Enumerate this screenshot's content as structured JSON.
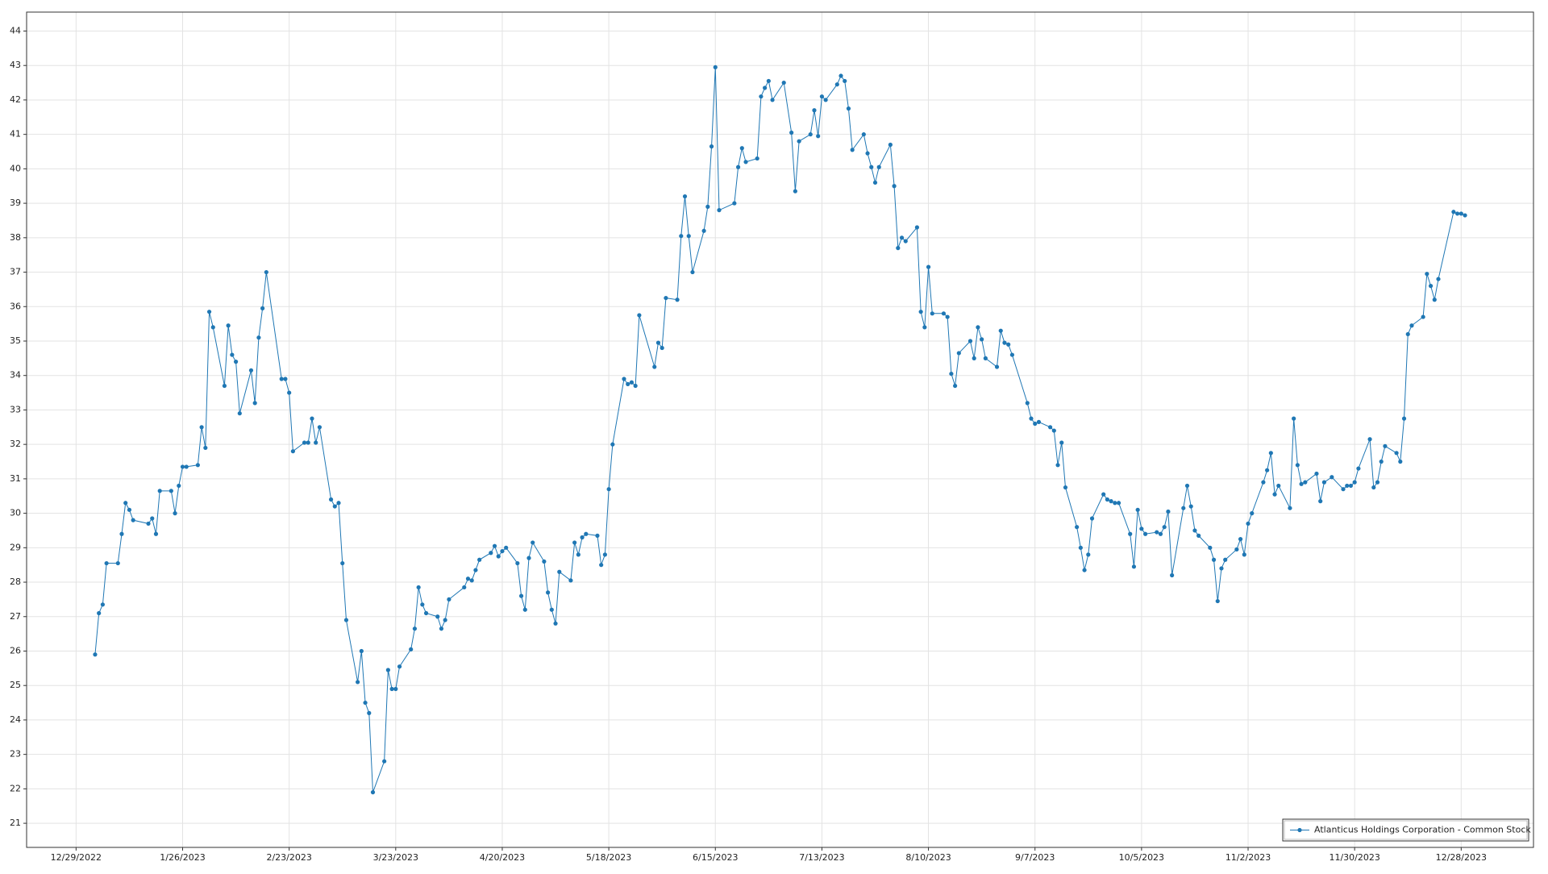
{
  "chart_data": {
    "type": "line",
    "grid": true,
    "legend": "lower right",
    "xlim": [
      "12/16/2022",
      "1/16/2024"
    ],
    "xticks": [
      "12/29/2022",
      "1/26/2023",
      "2/23/2023",
      "3/23/2023",
      "4/20/2023",
      "5/18/2023",
      "6/15/2023",
      "7/13/2023",
      "8/10/2023",
      "9/7/2023",
      "10/5/2023",
      "11/2/2023",
      "11/30/2023",
      "12/28/2023"
    ],
    "ylim": [
      20.3,
      44.55
    ],
    "yticks": [
      21,
      22,
      23,
      24,
      25,
      26,
      27,
      28,
      29,
      30,
      31,
      32,
      33,
      34,
      35,
      36,
      37,
      38,
      39,
      40,
      41,
      42,
      43,
      44
    ],
    "x": [
      "1/3/2023",
      "1/4/2023",
      "1/5/2023",
      "1/6/2023",
      "1/9/2023",
      "1/10/2023",
      "1/11/2023",
      "1/12/2023",
      "1/13/2023",
      "1/17/2023",
      "1/18/2023",
      "1/19/2023",
      "1/20/2023",
      "1/23/2023",
      "1/24/2023",
      "1/25/2023",
      "1/26/2023",
      "1/27/2023",
      "1/30/2023",
      "1/31/2023",
      "2/1/2023",
      "2/2/2023",
      "2/3/2023",
      "2/6/2023",
      "2/7/2023",
      "2/8/2023",
      "2/9/2023",
      "2/10/2023",
      "2/13/2023",
      "2/14/2023",
      "2/15/2023",
      "2/16/2023",
      "2/17/2023",
      "2/21/2023",
      "2/22/2023",
      "2/23/2023",
      "2/24/2023",
      "2/27/2023",
      "2/28/2023",
      "3/1/2023",
      "3/2/2023",
      "3/3/2023",
      "3/6/2023",
      "3/7/2023",
      "3/8/2023",
      "3/9/2023",
      "3/10/2023",
      "3/13/2023",
      "3/14/2023",
      "3/15/2023",
      "3/16/2023",
      "3/17/2023",
      "3/20/2023",
      "3/21/2023",
      "3/22/2023",
      "3/23/2023",
      "3/24/2023",
      "3/27/2023",
      "3/28/2023",
      "3/29/2023",
      "3/30/2023",
      "3/31/2023",
      "4/3/2023",
      "4/4/2023",
      "4/5/2023",
      "4/6/2023",
      "4/10/2023",
      "4/11/2023",
      "4/12/2023",
      "4/13/2023",
      "4/14/2023",
      "4/17/2023",
      "4/18/2023",
      "4/19/2023",
      "4/20/2023",
      "4/21/2023",
      "4/24/2023",
      "4/25/2023",
      "4/26/2023",
      "4/27/2023",
      "4/28/2023",
      "5/1/2023",
      "5/2/2023",
      "5/3/2023",
      "5/4/2023",
      "5/5/2023",
      "5/8/2023",
      "5/9/2023",
      "5/10/2023",
      "5/11/2023",
      "5/12/2023",
      "5/15/2023",
      "5/16/2023",
      "5/17/2023",
      "5/18/2023",
      "5/19/2023",
      "5/22/2023",
      "5/23/2023",
      "5/24/2023",
      "5/25/2023",
      "5/26/2023",
      "5/30/2023",
      "5/31/2023",
      "6/1/2023",
      "6/2/2023",
      "6/5/2023",
      "6/6/2023",
      "6/7/2023",
      "6/8/2023",
      "6/9/2023",
      "6/12/2023",
      "6/13/2023",
      "6/14/2023",
      "6/15/2023",
      "6/16/2023",
      "6/20/2023",
      "6/21/2023",
      "6/22/2023",
      "6/23/2023",
      "6/26/2023",
      "6/27/2023",
      "6/28/2023",
      "6/29/2023",
      "6/30/2023",
      "7/3/2023",
      "7/5/2023",
      "7/6/2023",
      "7/7/2023",
      "7/10/2023",
      "7/11/2023",
      "7/12/2023",
      "7/13/2023",
      "7/14/2023",
      "7/17/2023",
      "7/18/2023",
      "7/19/2023",
      "7/20/2023",
      "7/21/2023",
      "7/24/2023",
      "7/25/2023",
      "7/26/2023",
      "7/27/2023",
      "7/28/2023",
      "7/31/2023",
      "8/1/2023",
      "8/2/2023",
      "8/3/2023",
      "8/4/2023",
      "8/7/2023",
      "8/8/2023",
      "8/9/2023",
      "8/10/2023",
      "8/11/2023",
      "8/14/2023",
      "8/15/2023",
      "8/16/2023",
      "8/17/2023",
      "8/18/2023",
      "8/21/2023",
      "8/22/2023",
      "8/23/2023",
      "8/24/2023",
      "8/25/2023",
      "8/28/2023",
      "8/29/2023",
      "8/30/2023",
      "8/31/2023",
      "9/1/2023",
      "9/5/2023",
      "9/6/2023",
      "9/7/2023",
      "9/8/2023",
      "9/11/2023",
      "9/12/2023",
      "9/13/2023",
      "9/14/2023",
      "9/15/2023",
      "9/18/2023",
      "9/19/2023",
      "9/20/2023",
      "9/21/2023",
      "9/22/2023",
      "9/25/2023",
      "9/26/2023",
      "9/27/2023",
      "9/28/2023",
      "9/29/2023",
      "10/2/2023",
      "10/3/2023",
      "10/4/2023",
      "10/5/2023",
      "10/6/2023",
      "10/9/2023",
      "10/10/2023",
      "10/11/2023",
      "10/12/2023",
      "10/13/2023",
      "10/16/2023",
      "10/17/2023",
      "10/18/2023",
      "10/19/2023",
      "10/20/2023",
      "10/23/2023",
      "10/24/2023",
      "10/25/2023",
      "10/26/2023",
      "10/27/2023",
      "10/30/2023",
      "10/31/2023",
      "11/1/2023",
      "11/2/2023",
      "11/3/2023",
      "11/6/2023",
      "11/7/2023",
      "11/8/2023",
      "11/9/2023",
      "11/10/2023",
      "11/13/2023",
      "11/14/2023",
      "11/15/2023",
      "11/16/2023",
      "11/17/2023",
      "11/20/2023",
      "11/21/2023",
      "11/22/2023",
      "11/24/2023",
      "11/27/2023",
      "11/28/2023",
      "11/29/2023",
      "11/30/2023",
      "12/1/2023",
      "12/4/2023",
      "12/5/2023",
      "12/6/2023",
      "12/7/2023",
      "12/8/2023",
      "12/11/2023",
      "12/12/2023",
      "12/13/2023",
      "12/14/2023",
      "12/15/2023",
      "12/18/2023",
      "12/19/2023",
      "12/20/2023",
      "12/21/2023",
      "12/22/2023",
      "12/26/2023",
      "12/27/2023",
      "12/28/2023",
      "12/29/2023"
    ],
    "series": [
      {
        "name": "Atlanticus Holdings Corporation - Common Stock",
        "color": "#1f77b4",
        "values": [
          25.9,
          27.1,
          27.35,
          28.55,
          28.55,
          29.4,
          30.3,
          30.1,
          29.8,
          29.7,
          29.85,
          29.4,
          30.65,
          30.65,
          30.0,
          30.8,
          31.35,
          31.35,
          31.4,
          32.5,
          31.9,
          35.85,
          35.4,
          33.7,
          35.45,
          34.6,
          34.4,
          32.9,
          34.15,
          33.2,
          35.1,
          35.95,
          37.0,
          33.9,
          33.9,
          33.5,
          31.8,
          32.05,
          32.05,
          32.75,
          32.05,
          32.5,
          30.4,
          30.2,
          30.3,
          28.55,
          26.9,
          25.1,
          26.0,
          24.5,
          24.2,
          21.9,
          22.8,
          25.45,
          24.9,
          24.9,
          25.55,
          26.05,
          26.65,
          27.85,
          27.35,
          27.1,
          27.0,
          26.65,
          26.9,
          27.5,
          27.85,
          28.1,
          28.05,
          28.35,
          28.65,
          28.85,
          29.05,
          28.75,
          28.9,
          29.0,
          28.55,
          27.6,
          27.2,
          28.7,
          29.15,
          28.6,
          27.7,
          27.2,
          26.8,
          28.3,
          28.05,
          29.15,
          28.8,
          29.3,
          29.4,
          29.35,
          28.5,
          28.8,
          30.7,
          32.0,
          33.9,
          33.75,
          33.8,
          33.7,
          35.75,
          34.25,
          34.95,
          34.8,
          36.25,
          36.2,
          38.05,
          39.2,
          38.05,
          37.0,
          38.2,
          38.9,
          40.65,
          42.95,
          38.8,
          39.0,
          40.05,
          40.6,
          40.2,
          40.3,
          42.1,
          42.35,
          42.55,
          42.0,
          42.5,
          41.05,
          39.35,
          40.8,
          41.0,
          41.7,
          40.95,
          42.1,
          42.0,
          42.45,
          42.7,
          42.55,
          41.75,
          40.55,
          41.0,
          40.45,
          40.05,
          39.6,
          40.05,
          40.7,
          39.5,
          37.7,
          38.0,
          37.9,
          38.3,
          35.85,
          35.4,
          37.15,
          35.8,
          35.8,
          35.7,
          34.05,
          33.7,
          34.65,
          35.0,
          34.5,
          35.4,
          35.05,
          34.5,
          34.25,
          35.3,
          34.95,
          34.9,
          34.6,
          33.2,
          32.75,
          32.6,
          32.65,
          32.5,
          32.4,
          31.4,
          32.05,
          30.75,
          29.6,
          29.0,
          28.35,
          28.8,
          29.85,
          30.55,
          30.4,
          30.35,
          30.3,
          30.3,
          29.4,
          28.45,
          30.1,
          29.55,
          29.4,
          29.45,
          29.4,
          29.6,
          30.05,
          28.2,
          30.15,
          30.8,
          30.2,
          29.5,
          29.35,
          29.0,
          28.65,
          27.45,
          28.4,
          28.65,
          28.95,
          29.25,
          28.8,
          29.7,
          30.0,
          30.9,
          31.25,
          31.75,
          30.55,
          30.8,
          30.15,
          32.75,
          31.4,
          30.85,
          30.9,
          31.15,
          30.35,
          30.9,
          31.05,
          30.7,
          30.8,
          30.8,
          30.9,
          31.3,
          32.15,
          30.75,
          30.9,
          31.5,
          31.95,
          31.75,
          31.5,
          32.75,
          35.2,
          35.45,
          35.7,
          36.95,
          36.6,
          36.2,
          36.8,
          38.75,
          38.7,
          38.7,
          38.65
        ]
      }
    ]
  }
}
